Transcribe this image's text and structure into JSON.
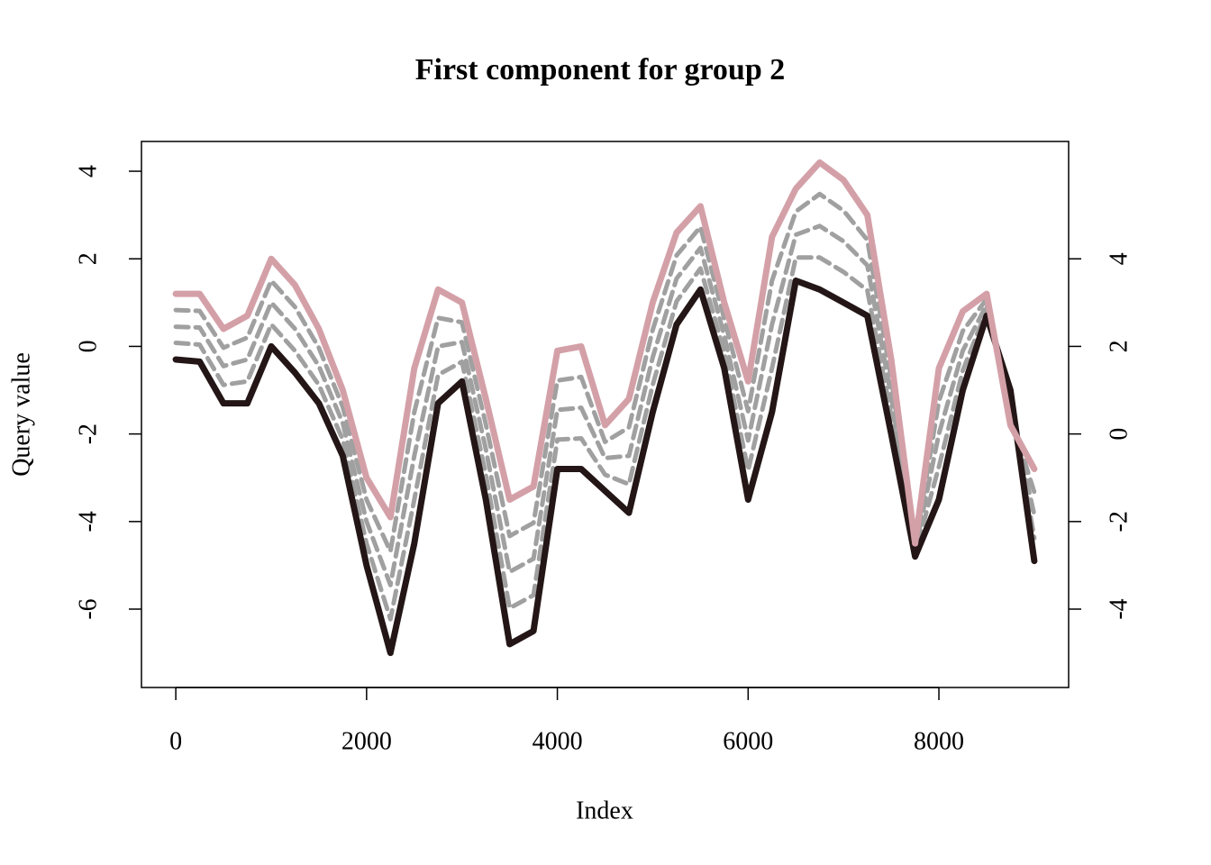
{
  "chart_data": {
    "type": "line",
    "title": "First component for group 2",
    "x_label": "Index",
    "y_label": "Query value",
    "x": [
      0,
      250,
      500,
      750,
      1000,
      1250,
      1500,
      1750,
      2000,
      2250,
      2500,
      2750,
      3000,
      3250,
      3500,
      3750,
      4000,
      4250,
      4500,
      4750,
      5000,
      5250,
      5500,
      5750,
      6000,
      6250,
      6500,
      6750,
      7000,
      7250,
      7500,
      7750,
      8000,
      8250,
      8500,
      8750,
      9000
    ],
    "series": [
      {
        "color": "#a0a0a0",
        "style": "dashed",
        "values": [
          0.08,
          0.04,
          -0.88,
          -0.8,
          0.5,
          -0.1,
          -0.88,
          -2.13,
          -4.5,
          -6.23,
          -3.5,
          -0.65,
          -0.35,
          -2.93,
          -5.98,
          -5.68,
          -2.13,
          -2.1,
          -2.93,
          -3.15,
          -0.88,
          1.03,
          1.78,
          -0.13,
          -2.83,
          -0.5,
          2.03,
          2.03,
          1.7,
          1.28,
          -1.58,
          -4.73,
          -2.75,
          -0.55,
          0.83,
          -1.2,
          -4.38
        ]
      },
      {
        "color": "#a0a0a0",
        "style": "dashed",
        "values": [
          0.45,
          0.43,
          -0.45,
          -0.3,
          1.0,
          0.4,
          -0.45,
          -1.75,
          -4.0,
          -5.45,
          -2.5,
          0,
          0.1,
          -2.35,
          -5.15,
          -4.85,
          -1.45,
          -1.4,
          -2.55,
          -2.5,
          -0.25,
          1.55,
          2.25,
          0.25,
          -2.15,
          0.5,
          2.55,
          2.75,
          2.4,
          1.85,
          -1.15,
          -4.65,
          -2.0,
          -0.1,
          0.95,
          -1.4,
          -3.85
        ]
      },
      {
        "color": "#a0a0a0",
        "style": "dashed",
        "values": [
          0.83,
          0.81,
          -0.03,
          0.2,
          1.5,
          0.9,
          -0.03,
          -1.38,
          -3.5,
          -4.68,
          -1.5,
          0.65,
          0.55,
          -1.78,
          -4.33,
          -4.03,
          -0.78,
          -0.7,
          -2.18,
          -1.85,
          0.38,
          2.08,
          2.73,
          0.63,
          -1.48,
          1.5,
          3.08,
          3.48,
          3.1,
          2.43,
          -0.73,
          -4.58,
          -1.25,
          0.35,
          1.08,
          -1.6,
          -3.33
        ]
      },
      {
        "color": "#241616",
        "style": "solid",
        "values": [
          -0.3,
          -0.35,
          -1.3,
          -1.3,
          0.0,
          -0.6,
          -1.3,
          -2.5,
          -5.0,
          -7.0,
          -4.5,
          -1.3,
          -0.8,
          -3.5,
          -6.8,
          -6.5,
          -2.8,
          -2.8,
          -3.3,
          -3.8,
          -1.5,
          0.5,
          1.3,
          -0.5,
          -3.5,
          -1.5,
          1.5,
          1.3,
          1.0,
          0.7,
          -2.0,
          -4.8,
          -3.5,
          -1.0,
          0.7,
          -1.0,
          -4.9
        ]
      },
      {
        "color": "#d4a0a8",
        "style": "solid",
        "values": [
          1.2,
          1.2,
          0.4,
          0.7,
          2.0,
          1.4,
          0.4,
          -1.0,
          -3.0,
          -3.9,
          -0.5,
          1.3,
          1.0,
          -1.2,
          -3.5,
          -3.2,
          -0.1,
          0.0,
          -1.8,
          -1.2,
          1.0,
          2.6,
          3.2,
          1.0,
          -0.8,
          2.5,
          3.6,
          4.2,
          3.8,
          3.0,
          -0.3,
          -4.5,
          -0.5,
          0.8,
          1.2,
          -1.8,
          -2.8
        ]
      }
    ],
    "xlim": [
      -360,
      9360
    ],
    "xticks": [
      0,
      2000,
      4000,
      6000,
      8000
    ],
    "ylim": [
      -7.79,
      4.68
    ],
    "yticks": [
      -6,
      -4,
      -2,
      0,
      2,
      4
    ],
    "y2lim": [
      -5.79,
      6.68
    ],
    "y2ticks": [
      -4,
      -2,
      0,
      2,
      4
    ]
  }
}
